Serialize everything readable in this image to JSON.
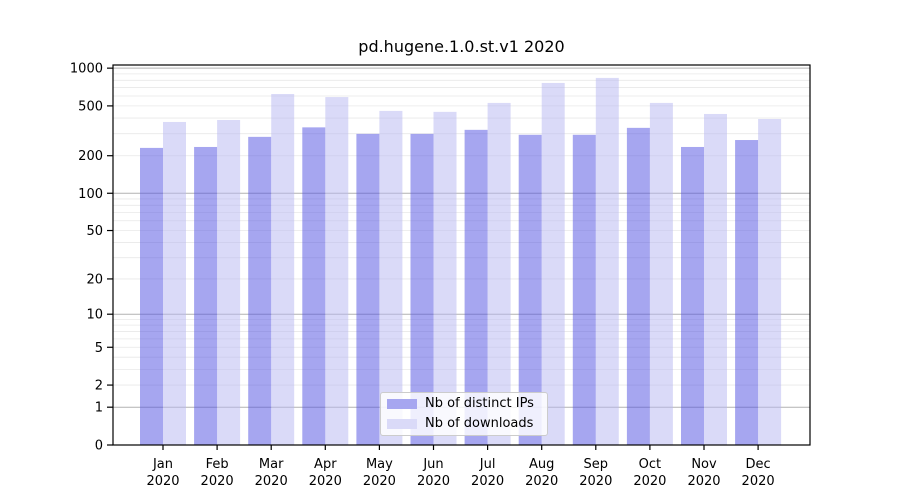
{
  "chart_data": {
    "type": "bar",
    "title": "pd.hugene.1.0.st.v1 2020",
    "categories": [
      "Jan",
      "Feb",
      "Mar",
      "Apr",
      "May",
      "Jun",
      "Jul",
      "Aug",
      "Sep",
      "Oct",
      "Nov",
      "Dec"
    ],
    "year_label": "2020",
    "series": [
      {
        "name": "Nb of distinct IPs",
        "color": "#a6a6f0",
        "values": [
          231,
          235,
          283,
          337,
          299,
          299,
          322,
          294,
          294,
          334,
          235,
          267
        ]
      },
      {
        "name": "Nb of downloads",
        "color": "#dadaf8",
        "values": [
          372,
          386,
          622,
          588,
          456,
          448,
          528,
          762,
          836,
          528,
          431,
          393
        ]
      }
    ],
    "y_axis": {
      "scale": "log1p",
      "ticks": [
        0,
        1,
        2,
        5,
        10,
        20,
        50,
        100,
        200,
        500,
        1000
      ],
      "major_gridlines": [
        1,
        10,
        100,
        1000
      ],
      "minor_gridlines": [
        2,
        3,
        4,
        5,
        6,
        7,
        8,
        9,
        20,
        30,
        40,
        50,
        60,
        70,
        80,
        90,
        200,
        300,
        400,
        500,
        600,
        700,
        800,
        900
      ],
      "ylim": [
        0,
        1060
      ]
    },
    "grid": {
      "major_color": "#b2b2b2",
      "minor_color": "#e8e8e8"
    },
    "legend": {
      "position": "lower center"
    },
    "colors": {
      "axis": "#000000",
      "text": "#000000",
      "background": "#ffffff"
    }
  }
}
